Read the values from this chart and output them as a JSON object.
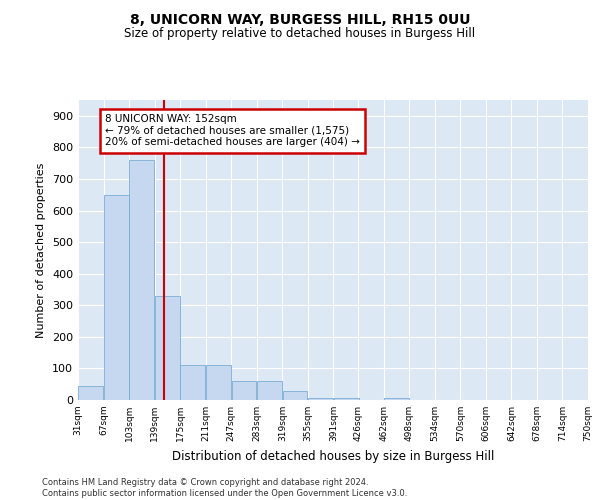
{
  "title1": "8, UNICORN WAY, BURGESS HILL, RH15 0UU",
  "title2": "Size of property relative to detached houses in Burgess Hill",
  "xlabel": "Distribution of detached houses by size in Burgess Hill",
  "ylabel": "Number of detached properties",
  "bar_color": "#c5d8f0",
  "bar_edge_color": "#7aadd4",
  "vline_color": "#cc0000",
  "vline_x": 152,
  "annotation_text": "8 UNICORN WAY: 152sqm\n← 79% of detached houses are smaller (1,575)\n20% of semi-detached houses are larger (404) →",
  "annotation_box_color": "#ffffff",
  "annotation_box_edge": "#cc0000",
  "bins": [
    31,
    67,
    103,
    139,
    175,
    211,
    247,
    283,
    319,
    355,
    391,
    426,
    462,
    498,
    534,
    570,
    606,
    642,
    678,
    714,
    750
  ],
  "bar_heights": [
    45,
    650,
    760,
    330,
    110,
    110,
    60,
    60,
    30,
    5,
    5,
    0,
    5,
    0,
    0,
    0,
    0,
    0,
    0,
    0
  ],
  "ylim": [
    0,
    950
  ],
  "yticks": [
    0,
    100,
    200,
    300,
    400,
    500,
    600,
    700,
    800,
    900
  ],
  "background_color": "#dde8f5",
  "footer_text": "Contains HM Land Registry data © Crown copyright and database right 2024.\nContains public sector information licensed under the Open Government Licence v3.0.",
  "figsize": [
    6.0,
    5.0
  ],
  "dpi": 100
}
